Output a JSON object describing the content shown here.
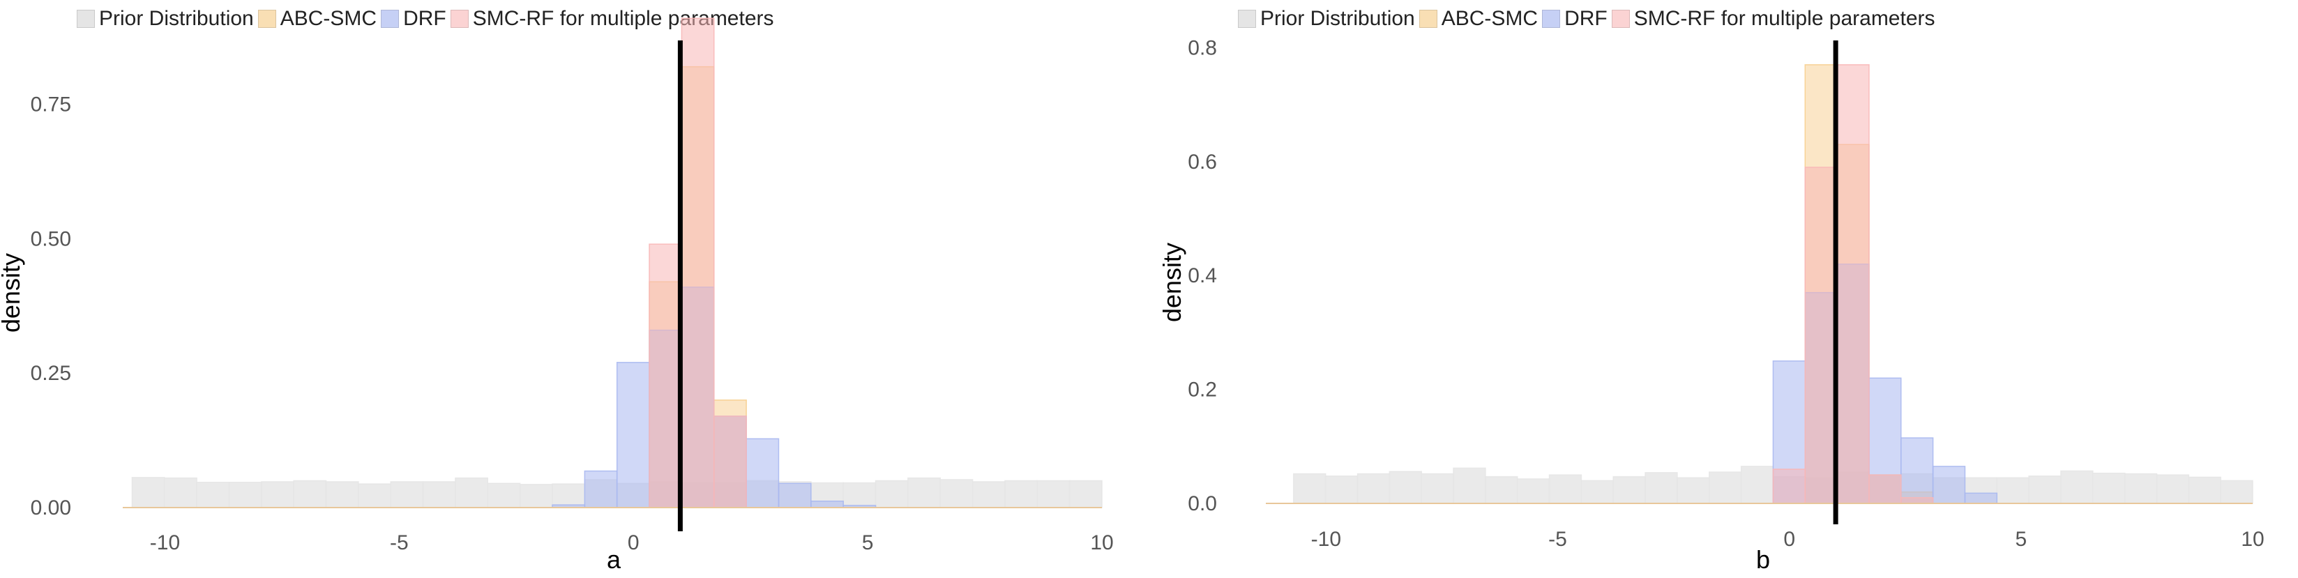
{
  "legend": {
    "items": [
      {
        "label": "Prior Distribution",
        "color": "#e5e5e5"
      },
      {
        "label": "ABC-SMC",
        "color": "#f7ce8e"
      },
      {
        "label": "DRF",
        "color": "#a9b8f0"
      },
      {
        "label": "SMC-RF for multiple parameters",
        "color": "#f8b7b7"
      }
    ]
  },
  "true_value_line_color": "#000000",
  "chart_data": [
    {
      "type": "bar",
      "subtype": "overlaid-histogram",
      "xlabel": "a",
      "ylabel": "density",
      "xlim": [
        -10.9,
        10
      ],
      "ylim": [
        0,
        0.9
      ],
      "grid": false,
      "legend_position": "top-left",
      "x_ticks": [
        {
          "value": -10,
          "label": "-10"
        },
        {
          "value": -5,
          "label": "-5"
        },
        {
          "value": 0,
          "label": "0"
        },
        {
          "value": 5,
          "label": "5"
        },
        {
          "value": 10,
          "label": "10"
        }
      ],
      "y_ticks": [
        {
          "value": 0,
          "label": "0.00"
        },
        {
          "value": 0.25,
          "label": "0.25"
        },
        {
          "value": 0.5,
          "label": "0.50"
        },
        {
          "value": 0.75,
          "label": "0.75"
        }
      ],
      "true_value": 1.0,
      "series": [
        {
          "name": "Prior Distribution",
          "color": "#e5e5e5",
          "opacity": 0.8,
          "edges": [
            -10.7,
            10
          ],
          "values": [
            0.056,
            0.055,
            0.047,
            0.047,
            0.048,
            0.05,
            0.048,
            0.044,
            0.048,
            0.048,
            0.055,
            0.045,
            0.043,
            0.044,
            0.052,
            0.045,
            0.048,
            0.046,
            0.046,
            0.05,
            0.048,
            0.046,
            0.046,
            0.05,
            0.055,
            0.052,
            0.048,
            0.05,
            0.05,
            0.05
          ]
        },
        {
          "name": "ABC-SMC",
          "color": "#f7ce8e",
          "opacity": 0.5,
          "edges": [
            -10.7,
            10
          ],
          "values": [
            0,
            0,
            0,
            0,
            0,
            0,
            0,
            0,
            0,
            0,
            0,
            0,
            0,
            0,
            0,
            0,
            0.42,
            0.82,
            0.2,
            0,
            0,
            0,
            0,
            0,
            0,
            0,
            0,
            0,
            0,
            0
          ]
        },
        {
          "name": "DRF",
          "color": "#a9b8f0",
          "opacity": 0.55,
          "edges": [
            -10.7,
            10
          ],
          "values": [
            0,
            0,
            0,
            0,
            0,
            0,
            0,
            0,
            0,
            0,
            0,
            0,
            0,
            0.005,
            0.068,
            0.27,
            0.33,
            0.41,
            0.17,
            0.128,
            0.045,
            0.012,
            0.004,
            0,
            0,
            0,
            0,
            0,
            0,
            0
          ]
        },
        {
          "name": "SMC-RF for multiple parameters",
          "color": "#f8b7b7",
          "opacity": 0.55,
          "edges": [
            -10.7,
            10
          ],
          "values": [
            0,
            0,
            0,
            0,
            0,
            0,
            0,
            0,
            0,
            0,
            0,
            0,
            0,
            0,
            0,
            0,
            0.49,
            0.91,
            0.17,
            0,
            0,
            0,
            0,
            0,
            0,
            0,
            0,
            0,
            0,
            0
          ]
        }
      ]
    },
    {
      "type": "bar",
      "subtype": "overlaid-histogram",
      "xlabel": "b",
      "ylabel": "density",
      "xlim": [
        -11.3,
        10
      ],
      "ylim": [
        0,
        0.82
      ],
      "grid": false,
      "legend_position": "top-left",
      "x_ticks": [
        {
          "value": -10,
          "label": "-10"
        },
        {
          "value": -5,
          "label": "-5"
        },
        {
          "value": 0,
          "label": "0"
        },
        {
          "value": 5,
          "label": "5"
        },
        {
          "value": 10,
          "label": "10"
        }
      ],
      "y_ticks": [
        {
          "value": 0,
          "label": "0.0"
        },
        {
          "value": 0.2,
          "label": "0.2"
        },
        {
          "value": 0.4,
          "label": "0.4"
        },
        {
          "value": 0.6,
          "label": "0.6"
        },
        {
          "value": 0.8,
          "label": "0.8"
        }
      ],
      "true_value": 1.0,
      "series": [
        {
          "name": "Prior Distribution",
          "color": "#e5e5e5",
          "opacity": 0.8,
          "edges": [
            -10.7,
            10
          ],
          "values": [
            0.052,
            0.048,
            0.052,
            0.056,
            0.052,
            0.062,
            0.047,
            0.043,
            0.05,
            0.04,
            0.047,
            0.054,
            0.045,
            0.055,
            0.065,
            0.047,
            0.045,
            0.055,
            0.05,
            0.052,
            0.045,
            0.045,
            0.045,
            0.048,
            0.057,
            0.053,
            0.052,
            0.05,
            0.046,
            0.04
          ]
        },
        {
          "name": "ABC-SMC",
          "color": "#f7ce8e",
          "opacity": 0.5,
          "edges": [
            -10.7,
            10
          ],
          "values": [
            0,
            0,
            0,
            0,
            0,
            0,
            0,
            0,
            0,
            0,
            0,
            0,
            0,
            0,
            0,
            0,
            0.77,
            0.63,
            0.05,
            0.02,
            0,
            0,
            0,
            0,
            0,
            0,
            0,
            0,
            0,
            0
          ]
        },
        {
          "name": "DRF",
          "color": "#a9b8f0",
          "opacity": 0.55,
          "edges": [
            -10.7,
            10
          ],
          "values": [
            0,
            0,
            0,
            0,
            0,
            0,
            0,
            0,
            0,
            0,
            0,
            0,
            0,
            0,
            0,
            0.25,
            0.37,
            0.42,
            0.22,
            0.115,
            0.065,
            0.018,
            0,
            0,
            0,
            0,
            0,
            0,
            0,
            0
          ]
        },
        {
          "name": "SMC-RF for multiple parameters",
          "color": "#f8b7b7",
          "opacity": 0.55,
          "edges": [
            -10.7,
            10
          ],
          "values": [
            0,
            0,
            0,
            0,
            0,
            0,
            0,
            0,
            0,
            0,
            0,
            0,
            0,
            0,
            0,
            0.06,
            0.59,
            0.77,
            0.05,
            0.01,
            0,
            0,
            0,
            0,
            0,
            0,
            0,
            0,
            0,
            0
          ]
        }
      ]
    }
  ]
}
